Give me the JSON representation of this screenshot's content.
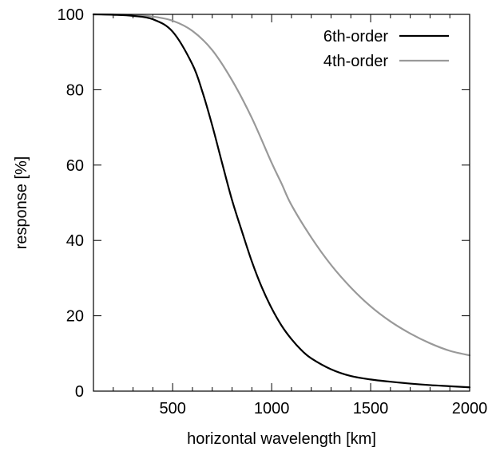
{
  "chart_data": {
    "type": "line",
    "title": "",
    "xlabel": "horizontal wavelength [km]",
    "ylabel": "response [%]",
    "xlim": [
      100,
      2000
    ],
    "ylim": [
      0,
      100
    ],
    "xticks": [
      {
        "value": 500,
        "label": "500"
      },
      {
        "value": 1000,
        "label": "1000"
      },
      {
        "value": 1500,
        "label": "1500"
      },
      {
        "value": 2000,
        "label": "2000"
      }
    ],
    "x_minor_step": 100,
    "yticks": [
      {
        "value": 0,
        "label": "0"
      },
      {
        "value": 20,
        "label": "20"
      },
      {
        "value": 40,
        "label": "40"
      },
      {
        "value": 60,
        "label": "60"
      },
      {
        "value": 80,
        "label": "80"
      },
      {
        "value": 100,
        "label": "100"
      }
    ],
    "grid": false,
    "legend_position": "top-right",
    "series": [
      {
        "name": "6th-order",
        "color": "#000000",
        "x": [
          100,
          200,
          300,
          400,
          500,
          600,
          650,
          700,
          750,
          800,
          850,
          900,
          950,
          1000,
          1050,
          1100,
          1150,
          1200,
          1300,
          1400,
          1500,
          1600,
          1700,
          1800,
          1900,
          2000
        ],
        "y": [
          100,
          99.9,
          99.6,
          98.7,
          95.4,
          86.7,
          79.5,
          70.5,
          60.5,
          50.7,
          42.4,
          34.4,
          27.6,
          22.0,
          17.4,
          13.8,
          10.9,
          8.7,
          5.8,
          4.0,
          3.1,
          2.5,
          2.0,
          1.6,
          1.3,
          1.0
        ]
      },
      {
        "name": "4th-order",
        "color": "#999999",
        "x": [
          100,
          200,
          300,
          400,
          500,
          600,
          700,
          800,
          900,
          1000,
          1050,
          1100,
          1200,
          1300,
          1400,
          1500,
          1600,
          1700,
          1800,
          1900,
          2000
        ],
        "y": [
          100,
          100,
          99.8,
          99.4,
          98.3,
          95.6,
          90.5,
          82.5,
          72.5,
          60.6,
          55.1,
          49.4,
          40.8,
          33.5,
          27.5,
          22.5,
          18.5,
          15.3,
          12.7,
          10.7,
          9.5
        ]
      }
    ]
  }
}
